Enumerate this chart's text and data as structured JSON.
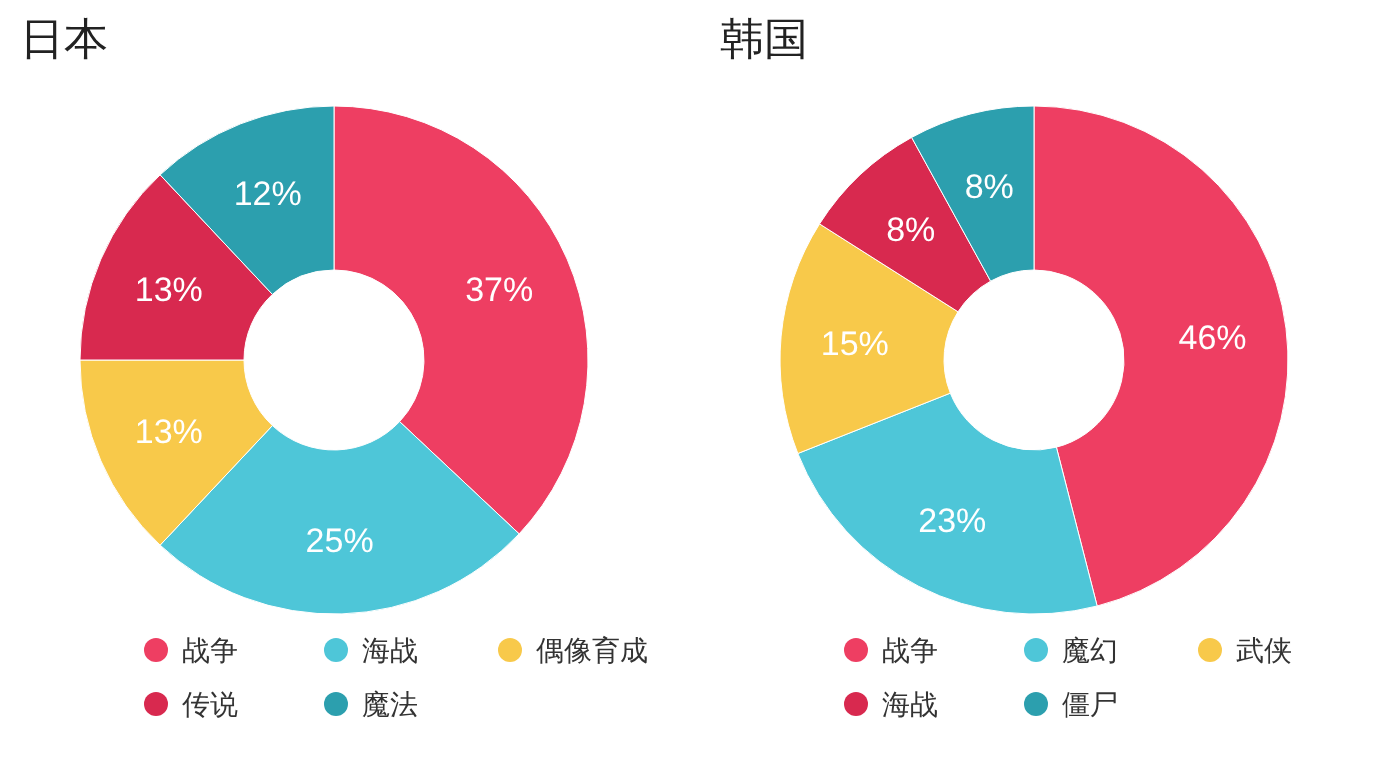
{
  "chart_data": [
    {
      "type": "donut",
      "title": "日本",
      "categories": [
        "战争",
        "海战",
        "偶像育成",
        "传说",
        "魔法"
      ],
      "values": [
        37,
        25,
        13,
        13,
        12
      ],
      "value_labels": [
        "37%",
        "25%",
        "13%",
        "13%",
        "12%"
      ],
      "colors": [
        "#ee3e62",
        "#4ec6d8",
        "#f8c94a",
        "#d8294f",
        "#2c9fae"
      ],
      "legend": "bottom"
    },
    {
      "type": "donut",
      "title": "韩国",
      "categories": [
        "战争",
        "魔幻",
        "武侠",
        "海战",
        "僵尸"
      ],
      "values": [
        46,
        23,
        15,
        8,
        8
      ],
      "value_labels": [
        "46%",
        "23%",
        "15%",
        "8%",
        "8%"
      ],
      "colors": [
        "#ee3e62",
        "#4ec6d8",
        "#f8c94a",
        "#d8294f",
        "#2c9fae"
      ],
      "legend": "bottom"
    }
  ]
}
